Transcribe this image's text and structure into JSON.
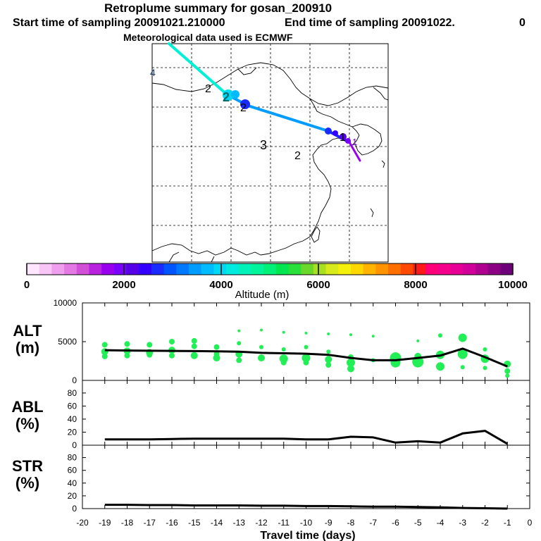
{
  "header": {
    "title": "Retroplume summary for gosan_200910",
    "start_label": "Start time of sampling 20091021.210000",
    "end_label": "End time of sampling 20091022.",
    "end_suffix": "0",
    "meteo_label": "Meteorological data used is ECMWF"
  },
  "map": {
    "labels": [
      {
        "text": "4",
        "color": "#1a3a6e"
      },
      {
        "text": "2",
        "color": "#000000"
      },
      {
        "text": "2",
        "color": "#006a6a"
      },
      {
        "text": "2",
        "color": "#000000"
      },
      {
        "text": "3",
        "color": "#000000"
      },
      {
        "text": "2",
        "color": "#000000"
      },
      {
        "text": "1",
        "color": "#000000"
      },
      {
        "text": "1",
        "color": "#7a00c8"
      }
    ]
  },
  "colorbar": {
    "tick_labels": [
      "0",
      "2000",
      "4000",
      "6000",
      "8000",
      "10000"
    ],
    "axis_label": "Altitude (m)",
    "colors": [
      "#ffe6ff",
      "#f7c6f7",
      "#eea0ee",
      "#e37ae3",
      "#d24fd8",
      "#b923e0",
      "#9a00f0",
      "#7a00ff",
      "#5500e6",
      "#3300ff",
      "#1a2bff",
      "#0055ff",
      "#0078ff",
      "#009cff",
      "#00bcff",
      "#00d9f5",
      "#00ebe0",
      "#00f2b8",
      "#00f59a",
      "#00f078",
      "#00e650",
      "#29e03a",
      "#6ad82a",
      "#a8e020",
      "#d8ea1a",
      "#f5f00a",
      "#ffd800",
      "#ffb400",
      "#ff9400",
      "#ff7000",
      "#ff4800",
      "#ff1a1a",
      "#ff007a",
      "#f5008a",
      "#e60096",
      "#d2009a",
      "#b00090",
      "#8c0084",
      "#6e007a"
    ]
  },
  "chart_data": [
    {
      "type": "line",
      "panel": "ALT",
      "label_top": "ALT",
      "label_bottom": "(m)",
      "x": [
        -19,
        -18,
        -17,
        -16,
        -15,
        -14,
        -13,
        -12,
        -11,
        -10,
        -9,
        -8,
        -7,
        -6,
        -5,
        -4,
        -3,
        -2,
        -1
      ],
      "values": [
        3900,
        3850,
        3830,
        3810,
        3780,
        3750,
        3700,
        3550,
        3500,
        3450,
        3300,
        2900,
        2600,
        2600,
        2900,
        3200,
        4100,
        3000,
        1800
      ],
      "ylim": [
        0,
        10000
      ],
      "ytick_labels": [
        "10000",
        "5000",
        "0"
      ],
      "scatter_color": "#22ee55",
      "scatter": [
        {
          "x": -19,
          "y": 4600,
          "r": 4
        },
        {
          "x": -19,
          "y": 3700,
          "r": 5
        },
        {
          "x": -19,
          "y": 3100,
          "r": 4
        },
        {
          "x": -18,
          "y": 4700,
          "r": 4
        },
        {
          "x": -18,
          "y": 3800,
          "r": 5
        },
        {
          "x": -18,
          "y": 3200,
          "r": 4
        },
        {
          "x": -17,
          "y": 4600,
          "r": 4
        },
        {
          "x": -17,
          "y": 3600,
          "r": 5
        },
        {
          "x": -17,
          "y": 3300,
          "r": 4
        },
        {
          "x": -16,
          "y": 5000,
          "r": 4
        },
        {
          "x": -16,
          "y": 3900,
          "r": 5
        },
        {
          "x": -16,
          "y": 3200,
          "r": 4
        },
        {
          "x": -15,
          "y": 5100,
          "r": 4
        },
        {
          "x": -15,
          "y": 4400,
          "r": 4
        },
        {
          "x": -15,
          "y": 3200,
          "r": 5
        },
        {
          "x": -14,
          "y": 4300,
          "r": 4
        },
        {
          "x": -14,
          "y": 3400,
          "r": 4
        },
        {
          "x": -14,
          "y": 2900,
          "r": 5
        },
        {
          "x": -13,
          "y": 6400,
          "r": 2
        },
        {
          "x": -13,
          "y": 4800,
          "r": 3
        },
        {
          "x": -13,
          "y": 3400,
          "r": 5
        },
        {
          "x": -13,
          "y": 2600,
          "r": 4
        },
        {
          "x": -12,
          "y": 6500,
          "r": 2
        },
        {
          "x": -12,
          "y": 4300,
          "r": 3
        },
        {
          "x": -12,
          "y": 2900,
          "r": 5
        },
        {
          "x": -11,
          "y": 6200,
          "r": 2
        },
        {
          "x": -11,
          "y": 4000,
          "r": 3
        },
        {
          "x": -11,
          "y": 2800,
          "r": 6
        },
        {
          "x": -11,
          "y": 2300,
          "r": 4
        },
        {
          "x": -10,
          "y": 6100,
          "r": 2
        },
        {
          "x": -10,
          "y": 4300,
          "r": 3
        },
        {
          "x": -10,
          "y": 2900,
          "r": 6
        },
        {
          "x": -10,
          "y": 2300,
          "r": 4
        },
        {
          "x": -9,
          "y": 6000,
          "r": 2
        },
        {
          "x": -9,
          "y": 3700,
          "r": 3
        },
        {
          "x": -9,
          "y": 2700,
          "r": 5
        },
        {
          "x": -9,
          "y": 2000,
          "r": 4
        },
        {
          "x": -8,
          "y": 5900,
          "r": 2
        },
        {
          "x": -8,
          "y": 3000,
          "r": 4
        },
        {
          "x": -8,
          "y": 2300,
          "r": 6
        },
        {
          "x": -8,
          "y": 1500,
          "r": 5
        },
        {
          "x": -7,
          "y": 5700,
          "r": 2
        },
        {
          "x": -7,
          "y": 2600,
          "r": 3
        },
        {
          "x": -6,
          "y": 2900,
          "r": 8
        },
        {
          "x": -6,
          "y": 2300,
          "r": 7
        },
        {
          "x": -5,
          "y": 5100,
          "r": 2
        },
        {
          "x": -5,
          "y": 3100,
          "r": 5
        },
        {
          "x": -5,
          "y": 2400,
          "r": 8
        },
        {
          "x": -4,
          "y": 5800,
          "r": 3
        },
        {
          "x": -4,
          "y": 3300,
          "r": 6
        },
        {
          "x": -4,
          "y": 1800,
          "r": 6
        },
        {
          "x": -3,
          "y": 5500,
          "r": 6
        },
        {
          "x": -3,
          "y": 3400,
          "r": 7
        },
        {
          "x": -3,
          "y": 1700,
          "r": 3
        },
        {
          "x": -2,
          "y": 4000,
          "r": 3
        },
        {
          "x": -2,
          "y": 2800,
          "r": 6
        },
        {
          "x": -2,
          "y": 1600,
          "r": 3
        },
        {
          "x": -1,
          "y": 2100,
          "r": 5
        },
        {
          "x": -1,
          "y": 1200,
          "r": 4
        },
        {
          "x": -1,
          "y": 600,
          "r": 3
        }
      ]
    },
    {
      "type": "line",
      "panel": "ABL",
      "label_top": "ABL",
      "label_bottom": "(%)",
      "x": [
        -19,
        -18,
        -17,
        -16,
        -15,
        -14,
        -13,
        -12,
        -11,
        -10,
        -9,
        -8,
        -7,
        -6,
        -5,
        -4,
        -3,
        -2,
        -1
      ],
      "values": [
        9,
        9,
        9,
        9.5,
        10,
        10,
        10,
        10,
        10,
        9,
        9,
        13,
        12,
        4,
        6,
        4,
        18,
        22,
        2
      ],
      "ylim": [
        0,
        95
      ],
      "ytick_labels": [
        "80",
        "60",
        "40",
        "20",
        "0"
      ]
    },
    {
      "type": "line",
      "panel": "STR",
      "label_top": "STR",
      "label_bottom": "(%)",
      "x": [
        -19,
        -18,
        -17,
        -16,
        -15,
        -14,
        -13,
        -12,
        -11,
        -10,
        -9,
        -8,
        -7,
        -6,
        -5,
        -4,
        -3,
        -2,
        -1
      ],
      "values": [
        6,
        6,
        5.5,
        5.5,
        5,
        5,
        5,
        4.5,
        4.5,
        4,
        4,
        3.5,
        3,
        3,
        2.5,
        2,
        1,
        0.5,
        0
      ],
      "ylim": [
        0,
        95
      ],
      "ytick_labels": [
        "80",
        "60",
        "40",
        "20",
        "0"
      ]
    }
  ],
  "xaxis": {
    "tick_labels": [
      "-20",
      "-19",
      "-18",
      "-17",
      "-16",
      "-15",
      "-14",
      "-13",
      "-12",
      "-11",
      "-10",
      "-9",
      "-8",
      "-7",
      "-6",
      "-5",
      "-4",
      "-3",
      "-2",
      "-1",
      "0"
    ],
    "label": "Travel time (days)"
  }
}
